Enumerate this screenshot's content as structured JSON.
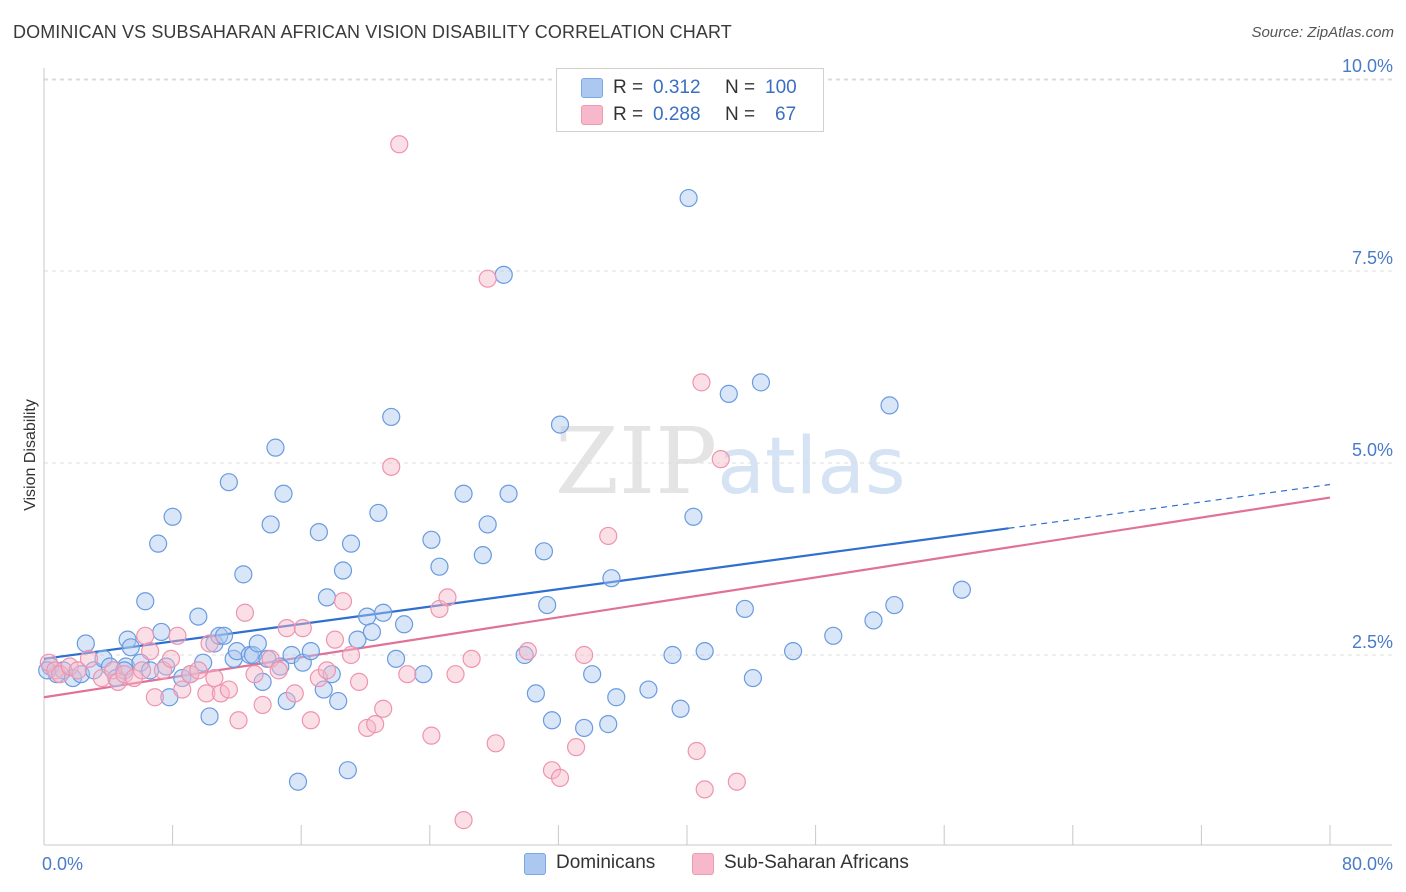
{
  "title": "DOMINICAN VS SUBSAHARAN AFRICAN VISION DISABILITY CORRELATION CHART",
  "source": "Source: ZipAtlas.com",
  "watermark": {
    "zip": "ZIP",
    "atlas": "atlas"
  },
  "legend_top": {
    "rows": [
      {
        "r_label": "R =",
        "r_value": "0.312",
        "n_label": "N =",
        "n_value": "100",
        "color": "#aac8f0"
      },
      {
        "r_label": "R =",
        "r_value": "0.288",
        "n_label": "N =",
        "n_value": "67",
        "color": "#f6b8ca"
      }
    ]
  },
  "legend_bottom": {
    "items": [
      {
        "label": "Dominicans",
        "color": "#aac8f0"
      },
      {
        "label": "Sub-Saharan Africans",
        "color": "#f6b8ca"
      }
    ]
  },
  "chart_data": {
    "type": "scatter",
    "title": "DOMINICAN VS SUBSAHARAN AFRICAN VISION DISABILITY CORRELATION CHART",
    "xlabel": "",
    "ylabel": "Vision Disability",
    "xlim": [
      0,
      80
    ],
    "ylim": [
      0,
      10.5
    ],
    "y_ticks": [
      {
        "value": 2.5,
        "label": "2.5%"
      },
      {
        "value": 5.0,
        "label": "5.0%"
      },
      {
        "value": 7.5,
        "label": "7.5%"
      },
      {
        "value": 10.0,
        "label": "10.0%"
      }
    ],
    "x_tick_labels": [
      {
        "value": 0,
        "label": "0.0%"
      },
      {
        "value": 80,
        "label": "80.0%"
      }
    ],
    "x_minor_ticks": [
      0,
      8,
      16,
      24,
      32,
      40,
      48,
      56,
      64,
      72,
      80
    ],
    "grid": true,
    "legend_position": "top-center",
    "series": [
      {
        "name": "Dominicans",
        "stroke": "#6a9be0",
        "fill": "#aac8f0",
        "trend": {
          "x0": 0,
          "y0": 2.45,
          "x1": 60,
          "y1": 4.15,
          "dash_to_x": 80,
          "dash_to_y": 4.72,
          "color": "#2f6fcf"
        },
        "points": [
          [
            0.4,
            2.35
          ],
          [
            0.8,
            2.25
          ],
          [
            1.2,
            2.3
          ],
          [
            1.8,
            2.2
          ],
          [
            2.3,
            2.25
          ],
          [
            2.6,
            2.65
          ],
          [
            3.1,
            2.3
          ],
          [
            3.7,
            2.45
          ],
          [
            4.1,
            2.35
          ],
          [
            4.5,
            2.2
          ],
          [
            5.1,
            2.35
          ],
          [
            5.0,
            2.3
          ],
          [
            5.2,
            2.7
          ],
          [
            5.4,
            2.6
          ],
          [
            6.0,
            2.4
          ],
          [
            6.3,
            3.2
          ],
          [
            6.6,
            2.3
          ],
          [
            7.1,
            3.95
          ],
          [
            7.3,
            2.8
          ],
          [
            7.6,
            2.35
          ],
          [
            7.8,
            1.95
          ],
          [
            8.0,
            4.3
          ],
          [
            8.6,
            2.2
          ],
          [
            9.1,
            2.25
          ],
          [
            9.6,
            3.0
          ],
          [
            9.9,
            2.4
          ],
          [
            10.3,
            1.7
          ],
          [
            10.6,
            2.65
          ],
          [
            10.9,
            2.75
          ],
          [
            11.2,
            2.75
          ],
          [
            11.5,
            4.75
          ],
          [
            11.8,
            2.45
          ],
          [
            12.0,
            2.55
          ],
          [
            12.4,
            3.55
          ],
          [
            12.8,
            2.5
          ],
          [
            13.0,
            2.5
          ],
          [
            13.3,
            2.65
          ],
          [
            13.6,
            2.15
          ],
          [
            13.9,
            2.45
          ],
          [
            14.1,
            4.2
          ],
          [
            14.4,
            5.2
          ],
          [
            14.7,
            2.35
          ],
          [
            14.9,
            4.6
          ],
          [
            15.1,
            1.9
          ],
          [
            15.4,
            2.5
          ],
          [
            15.8,
            0.85
          ],
          [
            16.1,
            2.4
          ],
          [
            16.6,
            2.55
          ],
          [
            17.1,
            4.1
          ],
          [
            17.4,
            2.05
          ],
          [
            17.6,
            3.25
          ],
          [
            17.9,
            2.25
          ],
          [
            18.3,
            1.9
          ],
          [
            18.6,
            3.6
          ],
          [
            18.9,
            1.0
          ],
          [
            19.1,
            3.95
          ],
          [
            19.5,
            2.7
          ],
          [
            20.1,
            3.0
          ],
          [
            20.4,
            2.8
          ],
          [
            20.8,
            4.35
          ],
          [
            21.1,
            3.05
          ],
          [
            21.6,
            5.6
          ],
          [
            21.9,
            2.45
          ],
          [
            22.4,
            2.9
          ],
          [
            23.6,
            2.25
          ],
          [
            24.1,
            4.0
          ],
          [
            24.6,
            3.65
          ],
          [
            26.1,
            4.6
          ],
          [
            27.3,
            3.8
          ],
          [
            27.6,
            4.2
          ],
          [
            28.6,
            7.45
          ],
          [
            28.9,
            4.6
          ],
          [
            29.9,
            2.5
          ],
          [
            30.6,
            2.0
          ],
          [
            31.1,
            3.85
          ],
          [
            31.3,
            3.15
          ],
          [
            31.6,
            1.65
          ],
          [
            32.1,
            5.5
          ],
          [
            33.6,
            1.55
          ],
          [
            34.1,
            2.25
          ],
          [
            35.1,
            1.6
          ],
          [
            35.3,
            3.5
          ],
          [
            35.6,
            1.95
          ],
          [
            37.6,
            2.05
          ],
          [
            39.1,
            2.5
          ],
          [
            39.6,
            1.8
          ],
          [
            40.1,
            8.45
          ],
          [
            40.4,
            4.3
          ],
          [
            41.1,
            2.55
          ],
          [
            42.6,
            5.9
          ],
          [
            43.6,
            3.1
          ],
          [
            44.1,
            2.2
          ],
          [
            44.6,
            6.05
          ],
          [
            46.6,
            2.55
          ],
          [
            49.1,
            2.75
          ],
          [
            51.6,
            2.95
          ],
          [
            52.6,
            5.75
          ],
          [
            52.9,
            3.15
          ],
          [
            57.1,
            3.35
          ],
          [
            0.2,
            2.3
          ]
        ]
      },
      {
        "name": "Sub-Saharan Africans",
        "stroke": "#ee94ae",
        "fill": "#f6b8ca",
        "trend": {
          "x0": 0,
          "y0": 1.95,
          "x1": 80,
          "y1": 4.55,
          "color": "#e07199"
        },
        "points": [
          [
            0.3,
            2.4
          ],
          [
            0.7,
            2.3
          ],
          [
            1.0,
            2.25
          ],
          [
            1.6,
            2.35
          ],
          [
            2.1,
            2.3
          ],
          [
            2.8,
            2.45
          ],
          [
            3.6,
            2.2
          ],
          [
            4.3,
            2.3
          ],
          [
            4.6,
            2.15
          ],
          [
            5.0,
            2.25
          ],
          [
            5.6,
            2.2
          ],
          [
            6.1,
            2.3
          ],
          [
            6.3,
            2.75
          ],
          [
            6.6,
            2.55
          ],
          [
            6.9,
            1.95
          ],
          [
            7.4,
            2.3
          ],
          [
            7.9,
            2.45
          ],
          [
            8.3,
            2.75
          ],
          [
            8.6,
            2.05
          ],
          [
            9.1,
            2.25
          ],
          [
            9.6,
            2.3
          ],
          [
            10.1,
            2.0
          ],
          [
            10.3,
            2.65
          ],
          [
            10.6,
            2.2
          ],
          [
            11.0,
            2.0
          ],
          [
            11.5,
            2.05
          ],
          [
            12.1,
            1.65
          ],
          [
            12.5,
            3.05
          ],
          [
            13.1,
            2.25
          ],
          [
            13.6,
            1.85
          ],
          [
            14.1,
            2.45
          ],
          [
            14.6,
            2.3
          ],
          [
            15.1,
            2.85
          ],
          [
            15.6,
            2.0
          ],
          [
            16.1,
            2.85
          ],
          [
            16.6,
            1.65
          ],
          [
            17.1,
            2.2
          ],
          [
            17.6,
            2.3
          ],
          [
            18.1,
            2.7
          ],
          [
            18.6,
            3.2
          ],
          [
            19.1,
            2.5
          ],
          [
            19.6,
            2.15
          ],
          [
            20.1,
            1.55
          ],
          [
            20.6,
            1.6
          ],
          [
            21.1,
            1.8
          ],
          [
            21.6,
            4.95
          ],
          [
            22.1,
            9.15
          ],
          [
            22.6,
            2.25
          ],
          [
            24.1,
            1.45
          ],
          [
            24.6,
            3.1
          ],
          [
            25.1,
            3.25
          ],
          [
            25.6,
            2.25
          ],
          [
            26.1,
            0.35
          ],
          [
            26.6,
            2.45
          ],
          [
            27.6,
            7.4
          ],
          [
            28.1,
            1.35
          ],
          [
            30.1,
            2.55
          ],
          [
            31.6,
            1.0
          ],
          [
            32.1,
            0.9
          ],
          [
            33.1,
            1.3
          ],
          [
            33.6,
            2.5
          ],
          [
            35.1,
            4.05
          ],
          [
            40.6,
            1.25
          ],
          [
            40.9,
            6.05
          ],
          [
            41.1,
            0.75
          ],
          [
            42.1,
            5.05
          ],
          [
            43.1,
            0.85
          ]
        ]
      }
    ]
  }
}
